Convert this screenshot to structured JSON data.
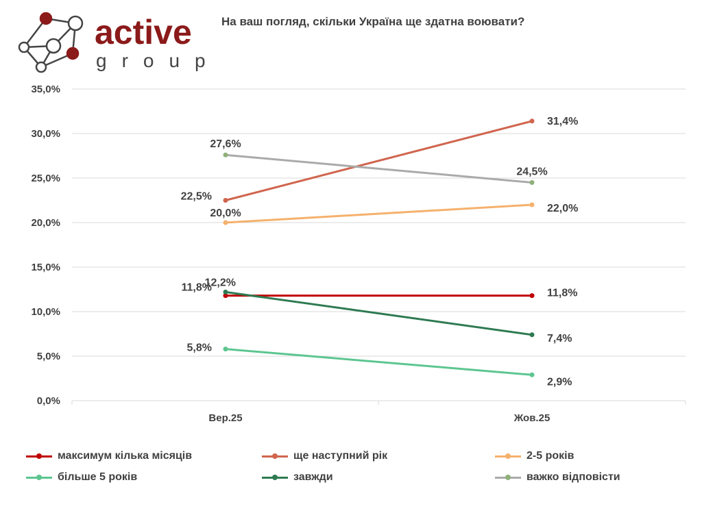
{
  "logo": {
    "text": "active",
    "subtext": "group"
  },
  "chart_data": {
    "type": "line",
    "title": "На ваш погляд, скільки Україна ще здатна воювати?",
    "categories": [
      "Вер.25",
      "Жов.25"
    ],
    "ylim": [
      0,
      35
    ],
    "yticks": [
      "0,0%",
      "5,0%",
      "10,0%",
      "15,0%",
      "20,0%",
      "25,0%",
      "30,0%",
      "35,0%"
    ],
    "grid": true,
    "legend_position": "bottom",
    "series": [
      {
        "name": "максимум кілька місяців",
        "color": "#c00000",
        "values": [
          11.8,
          11.8
        ],
        "labels": [
          "11,8%",
          "11,8%"
        ]
      },
      {
        "name": "ще наступний рік",
        "color": "#d0654e",
        "values": [
          22.5,
          31.4
        ],
        "labels": [
          "22,5%",
          "31,4%"
        ]
      },
      {
        "name": "2-5 років",
        "color": "#f4b16c",
        "values": [
          20.0,
          22.0
        ],
        "labels": [
          "20,0%",
          "22,0%"
        ]
      },
      {
        "name": "більше 5 років",
        "color": "#5cc690",
        "values": [
          5.8,
          2.9
        ],
        "labels": [
          "5,8%",
          "2,9%"
        ]
      },
      {
        "name": "завжди",
        "color": "#2e7a52",
        "values": [
          12.2,
          7.4
        ],
        "labels": [
          "12,2%",
          "7,4%"
        ]
      },
      {
        "name": "важко відповісти",
        "color": "#aaaaaa",
        "marker": "#8fb07a",
        "values": [
          27.6,
          24.5
        ],
        "labels": [
          "27,6%",
          "24,5%"
        ]
      }
    ]
  }
}
